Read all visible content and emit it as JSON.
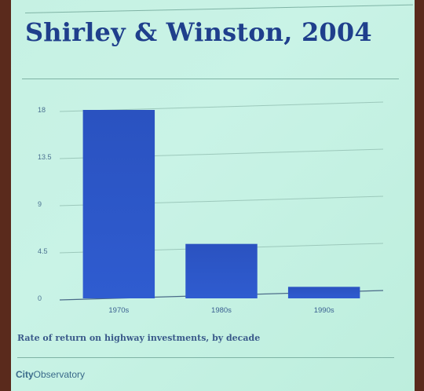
{
  "slide": {
    "title": "Shirley & Winston, 2004",
    "caption": "Rate of return on highway investments, by decade",
    "footer_brand": "City",
    "footer_rest": "Observatory"
  },
  "chart_data": {
    "type": "bar",
    "categories": [
      "1970s",
      "1980s",
      "1990s"
    ],
    "values": [
      18,
      5.2,
      1.1
    ],
    "yticks": [
      0,
      4.5,
      9,
      13.5,
      18
    ],
    "ytick_labels": [
      "0",
      "4.5",
      "9",
      "13.5",
      "18"
    ],
    "ylim": [
      0,
      18
    ],
    "title": "",
    "xlabel": "",
    "ylabel": "",
    "grid": true,
    "bar_color": "#2a55c4"
  }
}
